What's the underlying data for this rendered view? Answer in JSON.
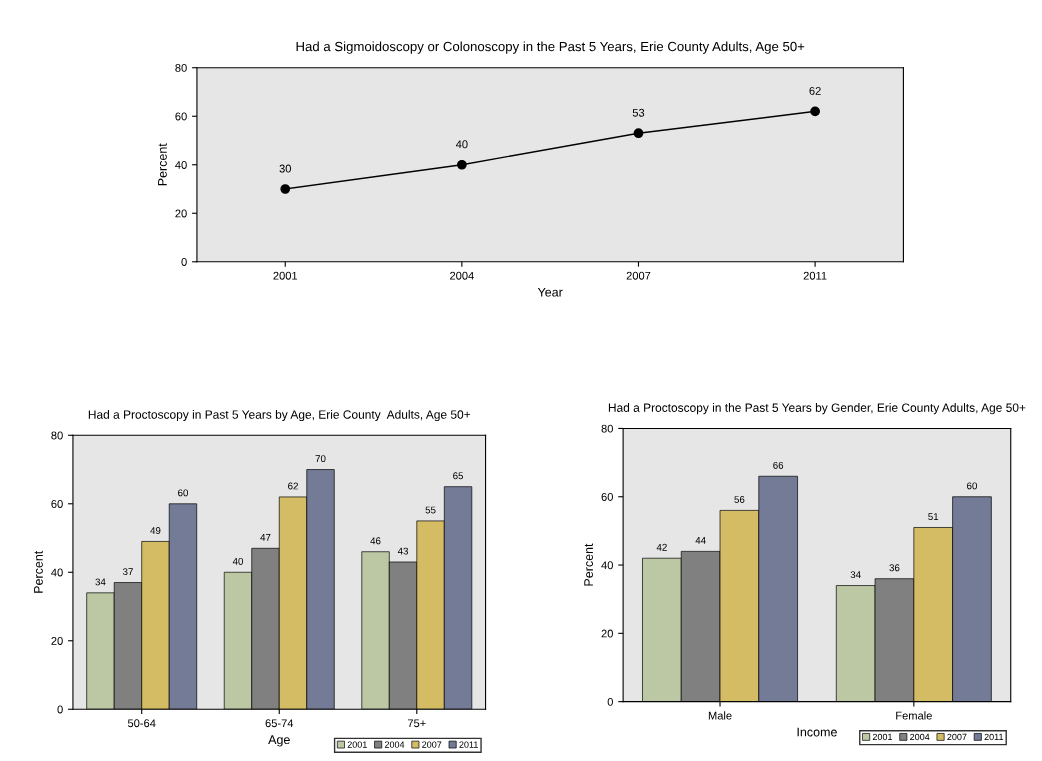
{
  "chart_data": [
    {
      "type": "line",
      "title": "Had a Sigmoidoscopy or Colonoscopy in the Past 5 Years, Erie County Adults, Age 50+",
      "xlabel": "Year",
      "ylabel": "Percent",
      "categories": [
        "2001",
        "2004",
        "2007",
        "2011"
      ],
      "series": [
        {
          "color": "#000000",
          "values": [
            30,
            40,
            53,
            62
          ]
        }
      ],
      "ylim": [
        0,
        80
      ],
      "yticks": [
        0,
        20,
        40,
        60,
        80
      ],
      "data_labels": true,
      "marker": "circle",
      "line_style": "solid",
      "grid": false,
      "legend": false
    },
    {
      "type": "bar",
      "title": "Had a Proctoscopy in Past 5 Years by Age, Erie County  Adults, Age 50+",
      "xlabel": "Age",
      "ylabel": "Percent",
      "categories": [
        "50-64",
        "65-74",
        "75+"
      ],
      "series": [
        {
          "name": "2001",
          "color": "#bcc8a4",
          "values": [
            34,
            40,
            46
          ]
        },
        {
          "name": "2004",
          "color": "#808080",
          "values": [
            37,
            47,
            43
          ]
        },
        {
          "name": "2007",
          "color": "#d4bc64",
          "values": [
            49,
            62,
            55
          ]
        },
        {
          "name": "2011",
          "color": "#737b96",
          "values": [
            60,
            70,
            65
          ]
        }
      ],
      "ylim": [
        0,
        80
      ],
      "yticks": [
        0,
        20,
        40,
        60,
        80
      ],
      "data_labels": true,
      "grid": false,
      "legend": "bottom right"
    },
    {
      "type": "bar",
      "title": "Had a Proctoscopy in the Past 5 Years by Gender, Erie County Adults, Age 50+",
      "xlabel": "Income",
      "ylabel": "Percent",
      "categories": [
        "Male",
        "Female"
      ],
      "series": [
        {
          "name": "2001",
          "color": "#bcc8a4",
          "values": [
            42,
            34
          ]
        },
        {
          "name": "2004",
          "color": "#808080",
          "values": [
            44,
            36
          ]
        },
        {
          "name": "2007",
          "color": "#d4bc64",
          "values": [
            56,
            51
          ]
        },
        {
          "name": "2011",
          "color": "#737b96",
          "values": [
            66,
            60
          ]
        }
      ],
      "ylim": [
        0,
        80
      ],
      "yticks": [
        0,
        20,
        40,
        60,
        80
      ],
      "data_labels": true,
      "grid": false,
      "legend": "bottom right"
    }
  ]
}
